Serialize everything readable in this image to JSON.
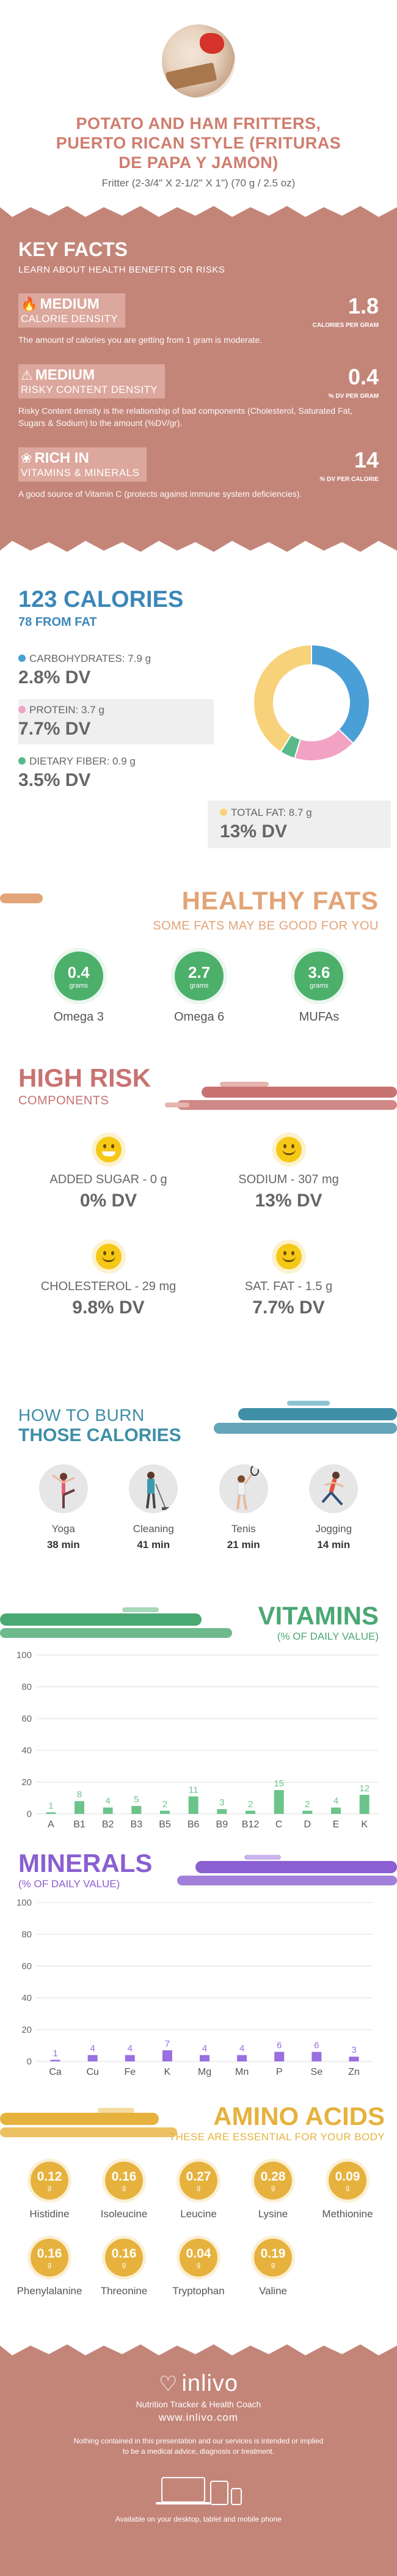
{
  "header": {
    "title_line1": "POTATO AND HAM FRITTERS,",
    "title_line2": "PUERTO RICAN STYLE (FRITURAS",
    "title_line3": "DE PAPA Y JAMON)",
    "serving": "Fritter (2-3/4\" X 2-1/2\" X 1\") (70 g / 2.5 oz)"
  },
  "key_facts": {
    "title": "KEY FACTS",
    "subtitle": "LEARN ABOUT HEALTH BENEFITS OR RISKS",
    "facts": [
      {
        "icon": "flame-icon",
        "level": "MEDIUM",
        "label": "CALORIE DENSITY",
        "value": "1.8",
        "unit": "CALORIES PER GRAM",
        "desc": "The amount of calories you are getting from 1 gram is moderate."
      },
      {
        "icon": "warning-icon",
        "level": "MEDIUM",
        "label": "RISKY CONTENT DENSITY",
        "value": "0.4",
        "unit": "% DV PER GRAM",
        "desc": "Risky Content density is the relationship of bad components (Cholesterol, Saturated Fat, Sugars & Sodium) to the amount (%DV/gr)."
      },
      {
        "icon": "leaf-icon",
        "level": "RICH IN",
        "label": "VITAMINS & MINERALS",
        "value": "14",
        "unit": "% DV PER CALORIE",
        "desc": "A good source of Vitamin C (protects against immune system deficiencies)."
      }
    ]
  },
  "calories": {
    "title": "123 CALORIES",
    "from_fat": "78 FROM FAT",
    "carbs_label": "CARBOHYDRATES: 7.9 g",
    "carbs_dv": "2.8% DV",
    "protein_label": "PROTEIN: 3.7 g",
    "protein_dv": "7.7% DV",
    "fiber_label": "DIETARY FIBER: 0.9 g",
    "fiber_dv": "3.5% DV",
    "fat_label": "TOTAL FAT: 8.7 g",
    "fat_dv": "13% DV",
    "colors": {
      "carbs": "#4a9fd6",
      "protein": "#f2a3c4",
      "fiber": "#59b98a",
      "fat": "#f8d27a"
    }
  },
  "chart_data": [
    {
      "type": "pie",
      "categories": [
        "Carbohydrates",
        "Protein",
        "Dietary Fiber",
        "Total Fat"
      ],
      "values": [
        7.9,
        3.7,
        0.9,
        8.7
      ]
    },
    {
      "type": "bar",
      "categories": [
        "A",
        "B1",
        "B2",
        "B3",
        "B5",
        "B6",
        "B9",
        "B12",
        "C",
        "D",
        "E",
        "K"
      ],
      "values": [
        1,
        8,
        4,
        5,
        2,
        11,
        3,
        2,
        15,
        2,
        4,
        12
      ],
      "title": "VITAMINS",
      "ylim": [
        0,
        100
      ],
      "yticks": [
        0,
        20,
        40,
        60,
        80,
        100
      ],
      "grid": true
    },
    {
      "type": "bar",
      "categories": [
        "Ca",
        "Cu",
        "Fe",
        "K",
        "Mg",
        "Mn",
        "P",
        "Se",
        "Zn"
      ],
      "values": [
        1,
        4,
        4,
        7,
        4,
        4,
        6,
        6,
        3
      ],
      "title": "MINERALS",
      "ylim": [
        0,
        100
      ],
      "yticks": [
        0,
        20,
        40,
        60,
        80,
        100
      ],
      "grid": true
    }
  ],
  "healthy_fats": {
    "title": "HEALTHY FATS",
    "subtitle": "SOME FATS MAY BE GOOD FOR YOU",
    "unit": "grams",
    "items": [
      {
        "value": "0.4",
        "name": "Omega 3"
      },
      {
        "value": "2.7",
        "name": "Omega 6"
      },
      {
        "value": "3.6",
        "name": "MUFAs"
      }
    ]
  },
  "high_risk": {
    "title": "HIGH RISK",
    "subtitle": "COMPONENTS",
    "items": [
      {
        "name": "ADDED SUGAR - 0 g",
        "dv": "0% DV"
      },
      {
        "name": "SODIUM - 307 mg",
        "dv": "13% DV"
      },
      {
        "name": "CHOLESTEROL - 29 mg",
        "dv": "9.8% DV"
      },
      {
        "name": "SAT. FAT - 1.5 g",
        "dv": "7.7% DV"
      }
    ]
  },
  "burn": {
    "title1": "HOW TO BURN",
    "title2": "THOSE CALORIES",
    "activities": [
      {
        "name": "Yoga",
        "mins": "38 min"
      },
      {
        "name": "Cleaning",
        "mins": "41 min"
      },
      {
        "name": "Tenis",
        "mins": "21 min"
      },
      {
        "name": "Jogging",
        "mins": "14 min"
      }
    ]
  },
  "vitamins": {
    "title": "VITAMINS",
    "subtitle": "(% OF DAILY VALUE)",
    "color": "#6cc48a"
  },
  "minerals": {
    "title": "MINERALS",
    "subtitle": "(% OF DAILY VALUE)",
    "color": "#9a6fe0"
  },
  "amino": {
    "title": "AMINO ACIDS",
    "subtitle": "THESE ARE ESSENTIAL FOR YOUR BODY",
    "unit": "g",
    "items": [
      {
        "value": "0.12",
        "name": "Histidine"
      },
      {
        "value": "0.16",
        "name": "Isoleucine"
      },
      {
        "value": "0.27",
        "name": "Leucine"
      },
      {
        "value": "0.28",
        "name": "Lysine"
      },
      {
        "value": "0.09",
        "name": "Methionine"
      },
      {
        "value": "0.16",
        "name": "Phenylalanine"
      },
      {
        "value": "0.16",
        "name": "Threonine"
      },
      {
        "value": "0.04",
        "name": "Tryptophan"
      },
      {
        "value": "0.19",
        "name": "Valine"
      }
    ]
  },
  "footer": {
    "logo": "inlivo",
    "tagline": "Nutrition Tracker & Health Coach",
    "site": "www.inlivo.com",
    "disclaimer": "Nothing contained in this presentation and our services is intended or implied to be a medical advice, diagnosis or treatment.",
    "available": "Available on your desktop, tablet and mobile phone"
  }
}
